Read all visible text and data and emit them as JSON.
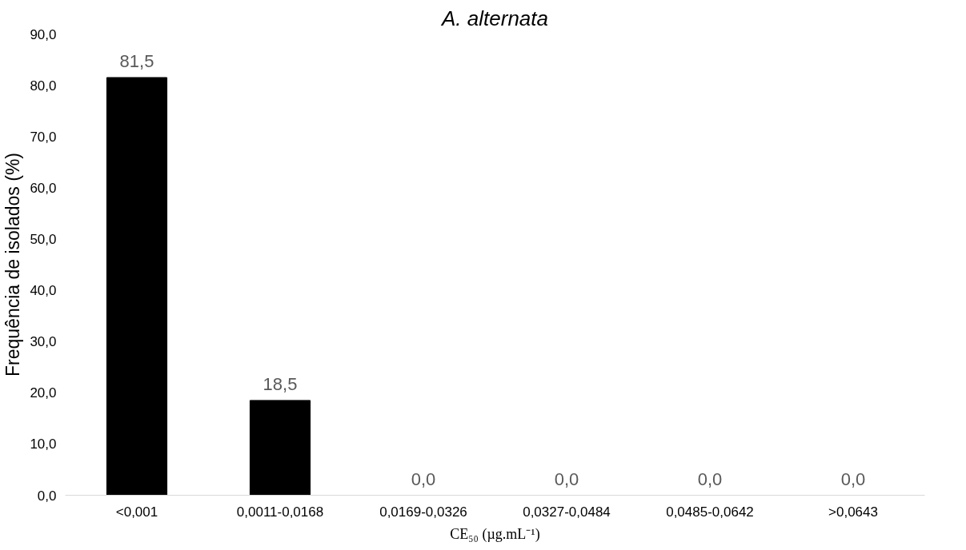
{
  "chart_data": {
    "type": "bar",
    "title": "A. alternata",
    "xlabel": "CE₅₀ (µg.mL⁻¹)",
    "ylabel": "Frequência de isolados (%)",
    "categories": [
      "<0,001",
      "0,0011-0,0168",
      "0,0169-0,0326",
      "0,0327-0,0484",
      "0,0485-0,0642",
      ">0,0643"
    ],
    "values": [
      81.5,
      18.5,
      0,
      0,
      0,
      0
    ],
    "color": "#000000",
    "value_labels": [
      "81,5",
      "18,5",
      "0,0",
      "0,0",
      "0,0",
      "0,0"
    ],
    "ylim": [
      0,
      90
    ],
    "yticks": [
      {
        "value": 0,
        "label": "0,0"
      },
      {
        "value": 10,
        "label": "10,0"
      },
      {
        "value": 20,
        "label": "20,0"
      },
      {
        "value": 30,
        "label": "30,0"
      },
      {
        "value": 40,
        "label": "40,0"
      },
      {
        "value": 50,
        "label": "50,0"
      },
      {
        "value": 60,
        "label": "60,0"
      },
      {
        "value": 70,
        "label": "70,0"
      },
      {
        "value": 80,
        "label": "80,0"
      },
      {
        "value": 90,
        "label": "90,0"
      }
    ],
    "grid": false
  }
}
